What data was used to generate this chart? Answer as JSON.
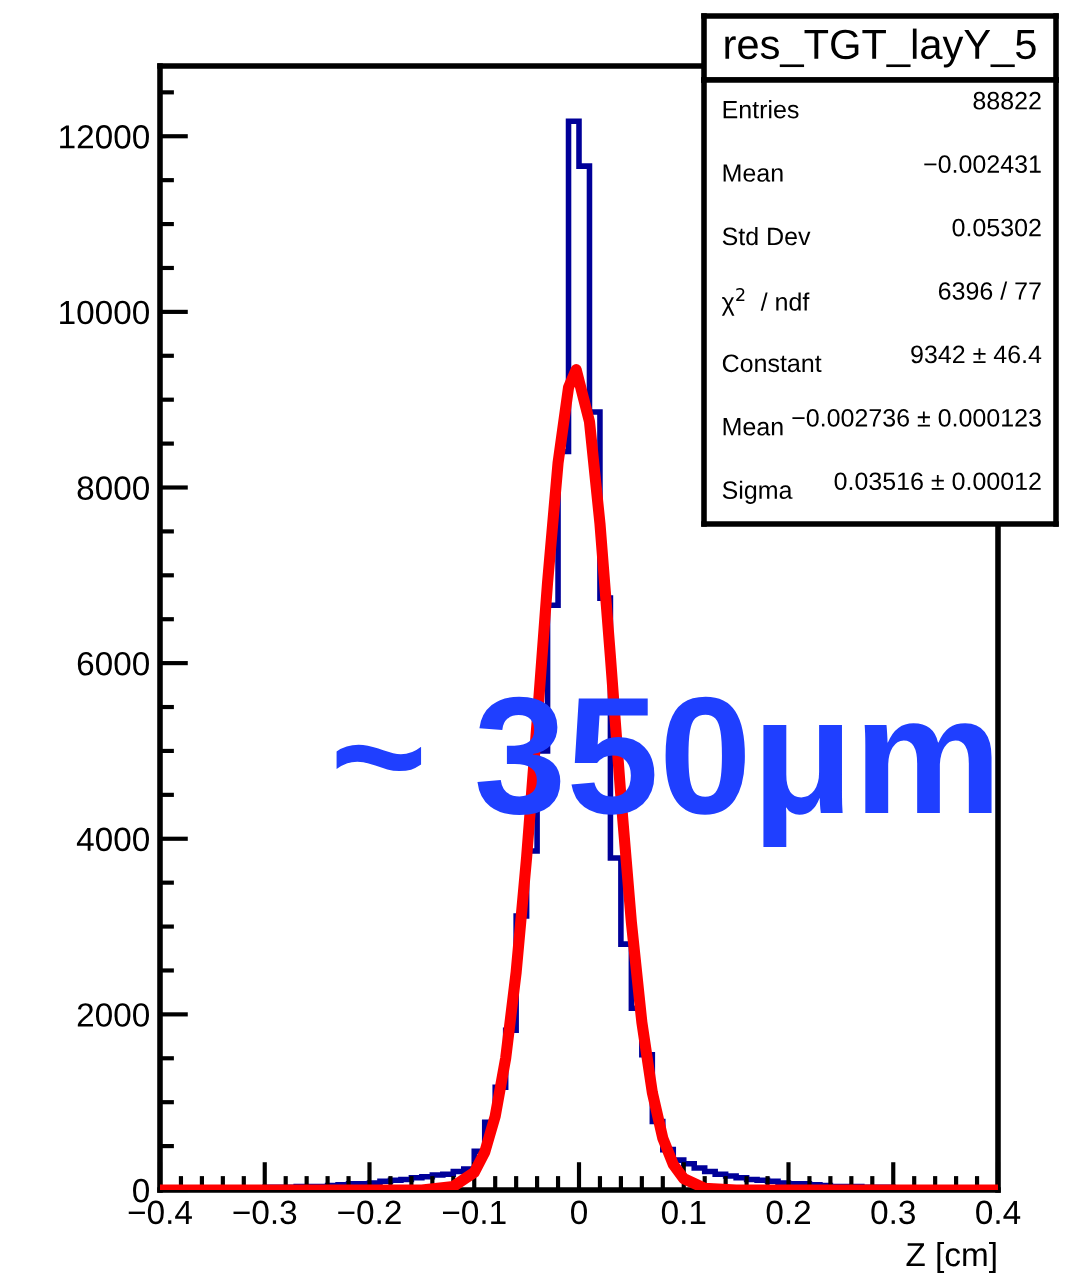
{
  "chart_data": {
    "type": "histogram",
    "title": "res_TGT_layY_5",
    "xlabel": "Z [cm]",
    "bins": [
      -0.4,
      -0.39,
      -0.38,
      -0.37,
      -0.36,
      -0.35,
      -0.34,
      -0.33,
      -0.32,
      -0.31,
      -0.3,
      -0.29,
      -0.28,
      -0.27,
      -0.26,
      -0.25,
      -0.24,
      -0.23,
      -0.22,
      -0.21,
      -0.2,
      -0.19,
      -0.18,
      -0.17,
      -0.16,
      -0.15,
      -0.14,
      -0.13,
      -0.12,
      -0.11,
      -0.1,
      -0.09,
      -0.08,
      -0.07,
      -0.06,
      -0.05,
      -0.04,
      -0.03,
      -0.02,
      -0.01,
      0,
      0.01,
      0.02,
      0.03,
      0.04,
      0.05,
      0.06,
      0.07,
      0.08,
      0.09,
      0.1,
      0.11,
      0.12,
      0.13,
      0.14,
      0.15,
      0.16,
      0.17,
      0.18,
      0.19,
      0.2,
      0.21,
      0.22,
      0.23,
      0.24,
      0.25,
      0.26,
      0.27,
      0.28,
      0.29,
      0.3,
      0.31,
      0.32,
      0.33,
      0.34,
      0.35,
      0.36,
      0.37,
      0.38,
      0.39,
      0.4
    ],
    "values": [
      10,
      10,
      10,
      10,
      10,
      20,
      20,
      20,
      20,
      20,
      30,
      30,
      30,
      40,
      40,
      40,
      50,
      60,
      70,
      70,
      80,
      100,
      110,
      120,
      140,
      150,
      170,
      180,
      210,
      240,
      440,
      770,
      1170,
      1820,
      3120,
      3860,
      5000,
      6660,
      8410,
      12170,
      11660,
      8860,
      6740,
      3780,
      2800,
      2070,
      1540,
      780,
      460,
      340,
      300,
      250,
      210,
      180,
      160,
      140,
      120,
      110,
      100,
      80,
      70,
      70,
      60,
      50,
      40,
      40,
      40,
      30,
      30,
      30,
      20,
      20,
      20,
      20,
      20,
      10,
      10,
      10,
      10,
      10
    ],
    "color": "#000099",
    "series": [
      {
        "type": "line",
        "color": "#ff0000",
        "x": [
          -0.4,
          -0.15,
          -0.12,
          -0.1,
          -0.09,
          -0.08,
          -0.07,
          -0.06,
          -0.05,
          -0.04,
          -0.03,
          -0.02,
          -0.01,
          -0.0027,
          0.01,
          0.02,
          0.03,
          0.04,
          0.05,
          0.06,
          0.07,
          0.08,
          0.09,
          0.1,
          0.12,
          0.15,
          0.4
        ],
        "values": [
          0,
          0,
          40,
          200,
          430,
          840,
          1500,
          2480,
          3790,
          5330,
          6920,
          8280,
          9140,
          9342,
          8750,
          7590,
          6070,
          4480,
          3050,
          1910,
          1110,
          590,
          290,
          130,
          20,
          0,
          0
        ]
      }
    ],
    "xlim": [
      -0.4,
      0.4
    ],
    "ylim": [
      0,
      12800
    ],
    "xticks": [
      {
        "value": -0.4,
        "label": "−0.4"
      },
      {
        "value": -0.3,
        "label": "−0.3"
      },
      {
        "value": -0.2,
        "label": "−0.2"
      },
      {
        "value": -0.1,
        "label": "−0.1"
      },
      0,
      0.1,
      0.2,
      0.3,
      0.4
    ],
    "yticks": [
      0,
      2000,
      4000,
      6000,
      8000,
      10000,
      12000
    ],
    "grid": false,
    "annotations": [
      "~ 350μm",
      "Entries",
      "88822",
      "Mean",
      "−0.002431",
      "Std Dev",
      "0.05302",
      "χ$^{2}$  / ndf",
      "6396 / 77",
      "Constant",
      "9342 ± 46.4",
      "Mean",
      "−0.002736 ± 0.000123",
      "Sigma",
      "0.03516 ± 0.00012"
    ]
  }
}
